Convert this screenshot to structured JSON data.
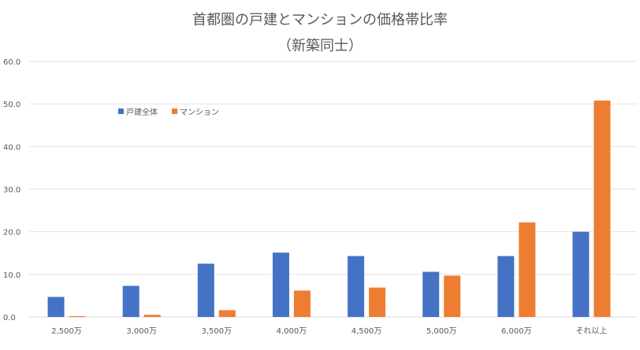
{
  "chart_data": {
    "type": "bar",
    "title": "首都圏の戸建とマンションの価格帯比率",
    "subtitle": "（新築同士）",
    "categories": [
      "2,500万",
      "3,000万",
      "3,500万",
      "4,000万",
      "4,500万",
      "5,000万",
      "6,000万",
      "それ以上"
    ],
    "series": [
      {
        "name": "戸建全体",
        "color": "#4472C4",
        "values": [
          4.7,
          7.3,
          12.5,
          15.1,
          14.3,
          10.6,
          14.3,
          20.0
        ]
      },
      {
        "name": "マンション",
        "color": "#ED7D31",
        "values": [
          0.2,
          0.5,
          1.6,
          6.2,
          6.9,
          9.7,
          22.2,
          50.8
        ]
      }
    ],
    "ylim": [
      0,
      60
    ],
    "yticks": [
      "0.0",
      "10.0",
      "20.0",
      "30.0",
      "40.0",
      "50.0",
      "60.0"
    ],
    "grid": true,
    "legend_position": "top-left",
    "xlabel": "",
    "ylabel": ""
  }
}
